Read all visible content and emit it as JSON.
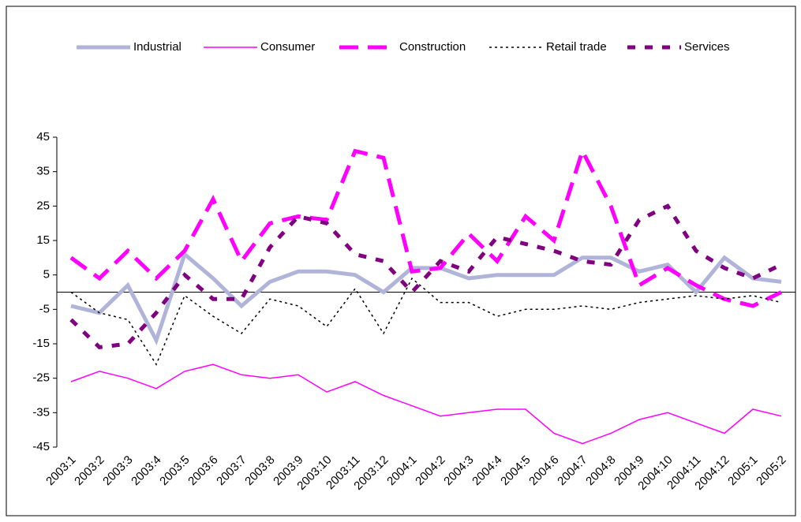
{
  "chart_data": {
    "type": "line",
    "categories": [
      "2003:1",
      "2003:2",
      "2003:3",
      "2003:4",
      "2003:5",
      "2003:6",
      "2003:7",
      "2003:8",
      "2003:9",
      "2003:10",
      "2003:11",
      "2003:12",
      "2004:1",
      "2004:2",
      "2004:3",
      "2004:4",
      "2004:5",
      "2004:6",
      "2004:7",
      "2004:8",
      "2004:9",
      "2004:10",
      "2004:11",
      "2004:12",
      "2005:1",
      "2005:2"
    ],
    "series": [
      {
        "name": "Industrial",
        "color": "#b0b4d8",
        "values": [
          -4,
          -6,
          2,
          -14,
          11,
          4,
          -4,
          3,
          6,
          6,
          5,
          0,
          7,
          7,
          4,
          5,
          5,
          5,
          10,
          10,
          6,
          8,
          0,
          10,
          4,
          3
        ]
      },
      {
        "name": "Consumer",
        "color": "#ff00ff",
        "values": [
          -26,
          -23,
          -25,
          -28,
          -23,
          -21,
          -24,
          -25,
          -24,
          -29,
          -26,
          -30,
          -33,
          -36,
          -35,
          -34,
          -34,
          -41,
          -44,
          -41,
          -37,
          -35,
          -38,
          -41,
          -34,
          -36
        ]
      },
      {
        "name": "Construction",
        "color": "#ff00ff",
        "values": [
          10,
          4,
          12,
          4,
          12,
          27,
          9,
          20,
          22,
          21,
          41,
          39,
          6,
          7,
          17,
          9,
          22,
          15,
          41,
          25,
          2,
          7,
          2,
          -2,
          -4,
          0
        ]
      },
      {
        "name": "Retail trade",
        "color": "#000000",
        "values": [
          0,
          -6,
          -8,
          -21,
          -1,
          -7,
          -12,
          -2,
          -4,
          -10,
          1,
          -12,
          4,
          -3,
          -3,
          -7,
          -5,
          -5,
          -4,
          -5,
          -3,
          -2,
          -1,
          -2,
          -1,
          -3
        ]
      },
      {
        "name": "Services",
        "color": "#800080",
        "values": [
          -8,
          -16,
          -15,
          -6,
          5,
          -2,
          -2,
          13,
          22,
          20,
          11,
          9,
          0,
          9,
          6,
          16,
          14,
          12,
          9,
          8,
          21,
          25,
          12,
          7,
          4,
          8
        ]
      }
    ],
    "ylim": [
      -45,
      45
    ],
    "yticks": [
      -45,
      -35,
      -25,
      -15,
      -5,
      5,
      15,
      25,
      35,
      45
    ],
    "legend": "top"
  }
}
